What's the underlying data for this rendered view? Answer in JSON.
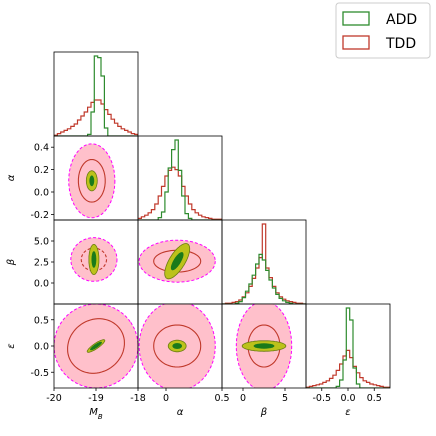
{
  "chart_data": {
    "type": "corner",
    "parameters": [
      {
        "key": "MB",
        "label": "M",
        "sub": "B",
        "range": [
          -20,
          -18
        ],
        "ticks": [
          "-20",
          "-19",
          "-18"
        ]
      },
      {
        "key": "alpha",
        "label": "α",
        "range": [
          -0.25,
          0.5
        ],
        "ticks": [
          "0",
          "0.5"
        ],
        "yticks": [
          "0.4",
          "0.2",
          "0.0",
          "-0.2"
        ]
      },
      {
        "key": "beta",
        "label": "β",
        "range": [
          -2.5,
          7.5
        ],
        "ticks": [
          "0",
          "5"
        ],
        "yticks": [
          "5.0",
          "2.5",
          "0.0"
        ]
      },
      {
        "key": "epsilon",
        "label": "ε",
        "range": [
          -0.8,
          0.8
        ],
        "ticks": [
          "-0.5",
          "0.0",
          "0.5"
        ],
        "yticks": [
          "0.5",
          "0.0",
          "-0.5"
        ]
      }
    ],
    "series": [
      {
        "name": "ADD",
        "color": "#2e8b2e"
      },
      {
        "name": "TDD",
        "color": "#c0392b"
      }
    ],
    "colors": {
      "outer_fill": "#ffc0cb",
      "outer_edge": "#ff00ff",
      "mid_fill": "#bcc21a",
      "inner_fill": "#1a7a1a",
      "tdd_line": "#c0392b",
      "add_line": "#2e8b2e"
    },
    "contours_2d": {
      "MB_alpha": {
        "center": [
          -19.1,
          0.1
        ],
        "outer": {
          "rx": 0.55,
          "ry": 0.33,
          "rot": 0
        },
        "tdd": {
          "rx": 0.32,
          "ry": 0.19,
          "rot": 0
        },
        "mid": {
          "rx": 0.13,
          "ry": 0.09,
          "rot": 0
        },
        "inner": {
          "rx": 0.05,
          "ry": 0.045,
          "rot": 0
        }
      },
      "MB_beta": {
        "center": [
          -19.05,
          2.8
        ],
        "outer": {
          "rx": 0.55,
          "ry": 2.6,
          "rot": 0
        },
        "tdd": {
          "rx": 0.3,
          "ry": 1.35,
          "rot": 0,
          "dashed": true
        },
        "mid": {
          "rx": 0.12,
          "ry": 1.8,
          "rot": 0
        },
        "inner": {
          "rx": 0.05,
          "ry": 0.95,
          "rot": 0
        }
      },
      "MB_epsilon": {
        "center": [
          -19.0,
          0.0
        ],
        "outer": {
          "rx": 1.0,
          "ry": 0.8,
          "rot": -0.6
        },
        "tdd": {
          "rx": 0.7,
          "ry": 0.5,
          "rot": -0.6
        },
        "mid": {
          "rx": 0.25,
          "ry": 0.05,
          "rot": -0.6
        },
        "inner": {
          "rx": 0.16,
          "ry": 0.03,
          "rot": -0.6
        }
      },
      "alpha_beta": {
        "center": [
          0.1,
          2.6
        ],
        "outer": {
          "rx": 0.34,
          "ry": 2.5,
          "rot": 0
        },
        "tdd": {
          "rx": 0.21,
          "ry": 1.3,
          "rot": 0
        },
        "mid": {
          "rx": 0.07,
          "ry": 2.4,
          "rot": 0.55
        },
        "inner": {
          "rx": 0.03,
          "ry": 1.2,
          "rot": 0.55
        }
      },
      "alpha_epsilon": {
        "center": [
          0.1,
          0.0
        ],
        "outer": {
          "rx": 0.34,
          "ry": 0.85,
          "rot": 0
        },
        "tdd": {
          "rx": 0.21,
          "ry": 0.4,
          "rot": 0
        },
        "mid": {
          "rx": 0.08,
          "ry": 0.11,
          "rot": 0
        },
        "inner": {
          "rx": 0.04,
          "ry": 0.05,
          "rot": 0
        }
      },
      "beta_epsilon": {
        "center": [
          2.5,
          0.0
        ],
        "outer": {
          "rx": 3.3,
          "ry": 0.85,
          "rot": 0
        },
        "tdd": {
          "rx": 1.9,
          "ry": 0.4,
          "rot": 0
        },
        "mid": {
          "rx": 2.6,
          "ry": 0.1,
          "rot": 0
        },
        "inner": {
          "rx": 1.2,
          "ry": 0.045,
          "rot": 0
        }
      }
    },
    "histograms_1d": {
      "MB": {
        "ADD": [
          0,
          0,
          0,
          0,
          0,
          0,
          0,
          0,
          0,
          0,
          0.02,
          0.3,
          1.0,
          0.98,
          0.75,
          0.1,
          0,
          0,
          0,
          0,
          0,
          0,
          0,
          0,
          0
        ],
        "TDD": [
          0.01,
          0.03,
          0.05,
          0.07,
          0.09,
          0.12,
          0.15,
          0.2,
          0.25,
          0.3,
          0.36,
          0.42,
          0.45,
          0.45,
          0.4,
          0.33,
          0.27,
          0.21,
          0.16,
          0.12,
          0.09,
          0.07,
          0.05,
          0.03,
          0.02
        ]
      },
      "alpha": {
        "ADD": [
          0,
          0,
          0,
          0,
          0,
          0,
          0.03,
          0.1,
          0.35,
          0.65,
          0.88,
          1.0,
          0.62,
          0.3,
          0.08,
          0.02,
          0,
          0,
          0,
          0,
          0,
          0,
          0,
          0,
          0
        ],
        "TDD": [
          0.02,
          0.04,
          0.06,
          0.09,
          0.13,
          0.2,
          0.3,
          0.42,
          0.55,
          0.62,
          0.66,
          0.63,
          0.55,
          0.42,
          0.3,
          0.2,
          0.13,
          0.09,
          0.06,
          0.04,
          0.03,
          0.02,
          0.01,
          0.01,
          0.01
        ]
      },
      "beta": {
        "ADD": [
          0,
          0,
          0,
          0,
          0.01,
          0.03,
          0.08,
          0.16,
          0.25,
          0.36,
          0.5,
          0.62,
          0.55,
          0.42,
          0.3,
          0.2,
          0.12,
          0.07,
          0.04,
          0.02,
          0.01,
          0,
          0,
          0,
          0
        ],
        "TDD": [
          0,
          0.01,
          0.01,
          0.02,
          0.03,
          0.05,
          0.09,
          0.14,
          0.22,
          0.32,
          0.45,
          0.58,
          1.0,
          0.45,
          0.33,
          0.22,
          0.14,
          0.09,
          0.06,
          0.04,
          0.03,
          0.02,
          0.01,
          0.01,
          0
        ]
      },
      "epsilon": {
        "ADD": [
          0,
          0,
          0,
          0,
          0,
          0,
          0,
          0,
          0,
          0.02,
          0.1,
          0.35,
          1.0,
          0.85,
          0.25,
          0.05,
          0,
          0,
          0,
          0,
          0,
          0,
          0,
          0,
          0
        ],
        "TDD": [
          0.01,
          0.02,
          0.03,
          0.04,
          0.05,
          0.07,
          0.09,
          0.12,
          0.16,
          0.22,
          0.3,
          0.4,
          0.47,
          0.38,
          0.27,
          0.19,
          0.13,
          0.09,
          0.07,
          0.05,
          0.04,
          0.03,
          0.02,
          0.01,
          0.01
        ]
      }
    },
    "legend": {
      "position": "top-right",
      "entries": [
        "ADD",
        "TDD"
      ]
    },
    "grid": false
  }
}
